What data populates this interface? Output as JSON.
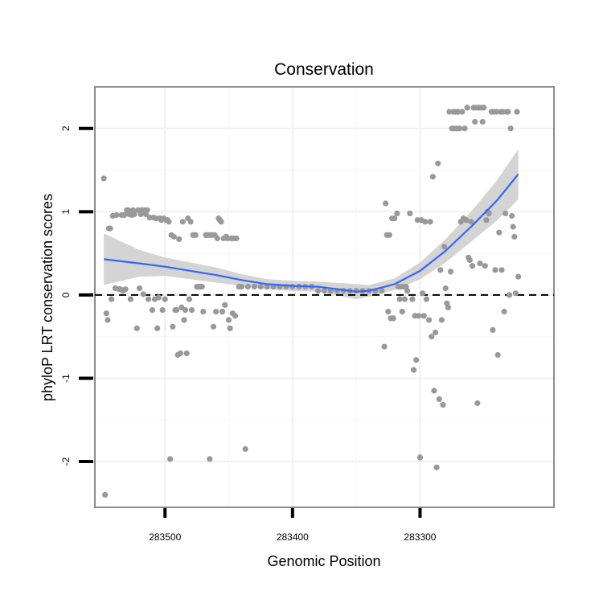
{
  "chart_data": {
    "type": "scatter",
    "title": "Conservation",
    "xlabel": "Genomic Position",
    "ylabel": "phyloP LRT conservation scores",
    "x_reversed": true,
    "xlim": [
      283555,
      283195
    ],
    "ylim": [
      -2.55,
      2.5
    ],
    "x_ticks": [
      283500,
      283400,
      283300
    ],
    "y_ticks": [
      -2,
      -1,
      0,
      1,
      2
    ],
    "reference_line": {
      "y": 0,
      "style": "dashed"
    },
    "grid": true,
    "colors": {
      "points": "#999999",
      "trend": "#3366ff",
      "band": "#cccccc",
      "reference": "#000000"
    },
    "points": [
      [
        283548,
        1.4
      ],
      [
        283547,
        -2.4
      ],
      [
        283546,
        -0.22
      ],
      [
        283545,
        -0.3
      ],
      [
        283544,
        0.8
      ],
      [
        283543,
        0.8
      ],
      [
        283542,
        -0.05
      ],
      [
        283541,
        0.95
      ],
      [
        283539,
        0.08
      ],
      [
        283538,
        0.96
      ],
      [
        283536,
        0.07
      ],
      [
        283535,
        0.07
      ],
      [
        283534,
        0.96
      ],
      [
        283533,
        0.05
      ],
      [
        283532,
        0.96
      ],
      [
        283531,
        0.07
      ],
      [
        283530,
        1.02
      ],
      [
        283529,
        1.02
      ],
      [
        283528,
        0.97
      ],
      [
        283527,
        -0.05
      ],
      [
        283526,
        0.96
      ],
      [
        283525,
        1.02
      ],
      [
        283524,
        0.97
      ],
      [
        283522,
        -0.4
      ],
      [
        283521,
        1.02
      ],
      [
        283520,
        0.08
      ],
      [
        283519,
        0.97
      ],
      [
        283518,
        1.02
      ],
      [
        283517,
        0.01
      ],
      [
        283516,
        1.02
      ],
      [
        283515,
        0.97
      ],
      [
        283514,
        1.02
      ],
      [
        283513,
        -0.05
      ],
      [
        283512,
        0.93
      ],
      [
        283510,
        -0.18
      ],
      [
        283509,
        0.93
      ],
      [
        283508,
        -0.05
      ],
      [
        283507,
        0.92
      ],
      [
        283506,
        -0.4
      ],
      [
        283505,
        -0.03
      ],
      [
        283504,
        0.92
      ],
      [
        283503,
        0.9
      ],
      [
        283502,
        -0.18
      ],
      [
        283501,
        0.92
      ],
      [
        283500,
        -0.05
      ],
      [
        283499,
        0.9
      ],
      [
        283498,
        0.9
      ],
      [
        283497,
        0.88
      ],
      [
        283496,
        -1.97
      ],
      [
        283495,
        0.72
      ],
      [
        283494,
        -0.38
      ],
      [
        283493,
        0.7
      ],
      [
        283492,
        -0.18
      ],
      [
        283491,
        -0.18
      ],
      [
        283490,
        -0.72
      ],
      [
        283489,
        0.67
      ],
      [
        283488,
        -0.7
      ],
      [
        283487,
        -0.15
      ],
      [
        283486,
        0.88
      ],
      [
        283485,
        -0.3
      ],
      [
        283484,
        -0.18
      ],
      [
        283483,
        -0.7
      ],
      [
        283482,
        0.92
      ],
      [
        283481,
        -0.05
      ],
      [
        283480,
        0.88
      ],
      [
        283479,
        -0.18
      ],
      [
        283478,
        0.72
      ],
      [
        283477,
        0.72
      ],
      [
        283476,
        0.72
      ],
      [
        283475,
        0.1
      ],
      [
        283474,
        0.1
      ],
      [
        283473,
        0.1
      ],
      [
        283472,
        0.1
      ],
      [
        283471,
        0.1
      ],
      [
        283470,
        -0.2
      ],
      [
        283468,
        0.72
      ],
      [
        283467,
        0.72
      ],
      [
        283466,
        0.72
      ],
      [
        283465,
        -1.97
      ],
      [
        283464,
        0.72
      ],
      [
        283463,
        0.72
      ],
      [
        283462,
        -0.38
      ],
      [
        283461,
        0.72
      ],
      [
        283460,
        -0.2
      ],
      [
        283459,
        0.68
      ],
      [
        283458,
        0.92
      ],
      [
        283457,
        0.9
      ],
      [
        283456,
        0.88
      ],
      [
        283455,
        -0.2
      ],
      [
        283454,
        0.68
      ],
      [
        283453,
        -0.12
      ],
      [
        283452,
        0.7
      ],
      [
        283451,
        0.68
      ],
      [
        283450,
        -0.3
      ],
      [
        283449,
        -0.4
      ],
      [
        283448,
        0.68
      ],
      [
        283447,
        -0.22
      ],
      [
        283446,
        0.68
      ],
      [
        283445,
        -0.25
      ],
      [
        283444,
        0.68
      ],
      [
        283442,
        0.1
      ],
      [
        283440,
        0.1
      ],
      [
        283437,
        -1.85
      ],
      [
        283435,
        0.1
      ],
      [
        283430,
        0.1
      ],
      [
        283425,
        0.1
      ],
      [
        283420,
        0.1
      ],
      [
        283415,
        0.1
      ],
      [
        283410,
        0.1
      ],
      [
        283405,
        0.1
      ],
      [
        283400,
        0.1
      ],
      [
        283395,
        0.1
      ],
      [
        283390,
        0.1
      ],
      [
        283385,
        0.1
      ],
      [
        283380,
        0.05
      ],
      [
        283375,
        0.05
      ],
      [
        283370,
        0.05
      ],
      [
        283365,
        0.05
      ],
      [
        283360,
        0.05
      ],
      [
        283355,
        0.05
      ],
      [
        283350,
        0.05
      ],
      [
        283345,
        0.05
      ],
      [
        283340,
        0.05
      ],
      [
        283335,
        0.05
      ],
      [
        283330,
        0.05
      ],
      [
        283328,
        -0.62
      ],
      [
        283327,
        1.1
      ],
      [
        283326,
        0.72
      ],
      [
        283325,
        -0.2
      ],
      [
        283324,
        0.72
      ],
      [
        283323,
        -0.28
      ],
      [
        283322,
        0.92
      ],
      [
        283321,
        -0.28
      ],
      [
        283320,
        0.92
      ],
      [
        283318,
        0.98
      ],
      [
        283317,
        0.1
      ],
      [
        283316,
        -0.05
      ],
      [
        283315,
        0.1
      ],
      [
        283314,
        -0.2
      ],
      [
        283313,
        0.1
      ],
      [
        283312,
        -0.05
      ],
      [
        283311,
        0.1
      ],
      [
        283310,
        0.05
      ],
      [
        283308,
        0.98
      ],
      [
        283306,
        -0.05
      ],
      [
        283305,
        -0.9
      ],
      [
        283304,
        -0.25
      ],
      [
        283303,
        -0.78
      ],
      [
        283302,
        0.9
      ],
      [
        283301,
        -0.25
      ],
      [
        283300,
        -1.95
      ],
      [
        283299,
        0.9
      ],
      [
        283298,
        0.02
      ],
      [
        283297,
        -0.25
      ],
      [
        283296,
        0.88
      ],
      [
        283295,
        -0.05
      ],
      [
        283293,
        -0.3
      ],
      [
        283292,
        0.88
      ],
      [
        283291,
        -0.5
      ],
      [
        283290,
        1.42
      ],
      [
        283289,
        -1.15
      ],
      [
        283288,
        -0.45
      ],
      [
        283287,
        -2.07
      ],
      [
        283286,
        1.58
      ],
      [
        283285,
        -1.25
      ],
      [
        283284,
        0.3
      ],
      [
        283283,
        -0.3
      ],
      [
        283282,
        -1.32
      ],
      [
        283281,
        0.58
      ],
      [
        283280,
        0.08
      ],
      [
        283279,
        -0.1
      ],
      [
        283278,
        -0.15
      ],
      [
        283277,
        2.2
      ],
      [
        283276,
        0.28
      ],
      [
        283275,
        2.0
      ],
      [
        283274,
        2.2
      ],
      [
        283273,
        2.0
      ],
      [
        283272,
        2.2
      ],
      [
        283271,
        2.0
      ],
      [
        283270,
        2.2
      ],
      [
        283269,
        2.0
      ],
      [
        283268,
        0.88
      ],
      [
        283267,
        2.2
      ],
      [
        283266,
        0.92
      ],
      [
        283265,
        2.0
      ],
      [
        283264,
        0.9
      ],
      [
        283263,
        2.25
      ],
      [
        283262,
        0.45
      ],
      [
        283261,
        0.42
      ],
      [
        283260,
        0.88
      ],
      [
        283259,
        0.35
      ],
      [
        283258,
        2.25
      ],
      [
        283257,
        2.08
      ],
      [
        283256,
        2.25
      ],
      [
        283255,
        -1.3
      ],
      [
        283254,
        2.25
      ],
      [
        283253,
        0.38
      ],
      [
        283252,
        2.25
      ],
      [
        283251,
        2.08
      ],
      [
        283250,
        2.25
      ],
      [
        283249,
        0.35
      ],
      [
        283248,
        0.9
      ],
      [
        283247,
        1.0
      ],
      [
        283246,
        0.98
      ],
      [
        283244,
        2.2
      ],
      [
        283243,
        -0.42
      ],
      [
        283242,
        2.2
      ],
      [
        283241,
        0.3
      ],
      [
        283240,
        2.2
      ],
      [
        283239,
        -0.72
      ],
      [
        283238,
        0.75
      ],
      [
        283237,
        2.2
      ],
      [
        283236,
        0.3
      ],
      [
        283235,
        2.2
      ],
      [
        283234,
        -0.2
      ],
      [
        283233,
        0.98
      ],
      [
        283232,
        2.2
      ],
      [
        283231,
        2.2
      ],
      [
        283230,
        0.0
      ],
      [
        283229,
        2.0
      ],
      [
        283228,
        0.95
      ],
      [
        283227,
        0.82
      ],
      [
        283226,
        0.7
      ],
      [
        283225,
        0.02
      ],
      [
        283224,
        2.2
      ],
      [
        283223,
        0.22
      ]
    ],
    "smooth_trend": {
      "x": [
        283548,
        283520,
        283500,
        283480,
        283460,
        283440,
        283420,
        283400,
        283380,
        283360,
        283350,
        283340,
        283320,
        283300,
        283280,
        283260,
        283240,
        283223
      ],
      "y": [
        0.43,
        0.38,
        0.34,
        0.29,
        0.24,
        0.18,
        0.13,
        0.11,
        0.1,
        0.06,
        0.04,
        0.05,
        0.13,
        0.29,
        0.53,
        0.82,
        1.13,
        1.45
      ],
      "lower": [
        0.12,
        0.22,
        0.23,
        0.19,
        0.15,
        0.11,
        0.07,
        0.05,
        0.04,
        -0.02,
        -0.05,
        -0.02,
        0.06,
        0.19,
        0.39,
        0.64,
        0.89,
        1.15
      ],
      "upper": [
        0.74,
        0.54,
        0.45,
        0.39,
        0.33,
        0.25,
        0.19,
        0.17,
        0.16,
        0.14,
        0.13,
        0.12,
        0.2,
        0.39,
        0.67,
        1.0,
        1.37,
        1.75
      ]
    }
  }
}
